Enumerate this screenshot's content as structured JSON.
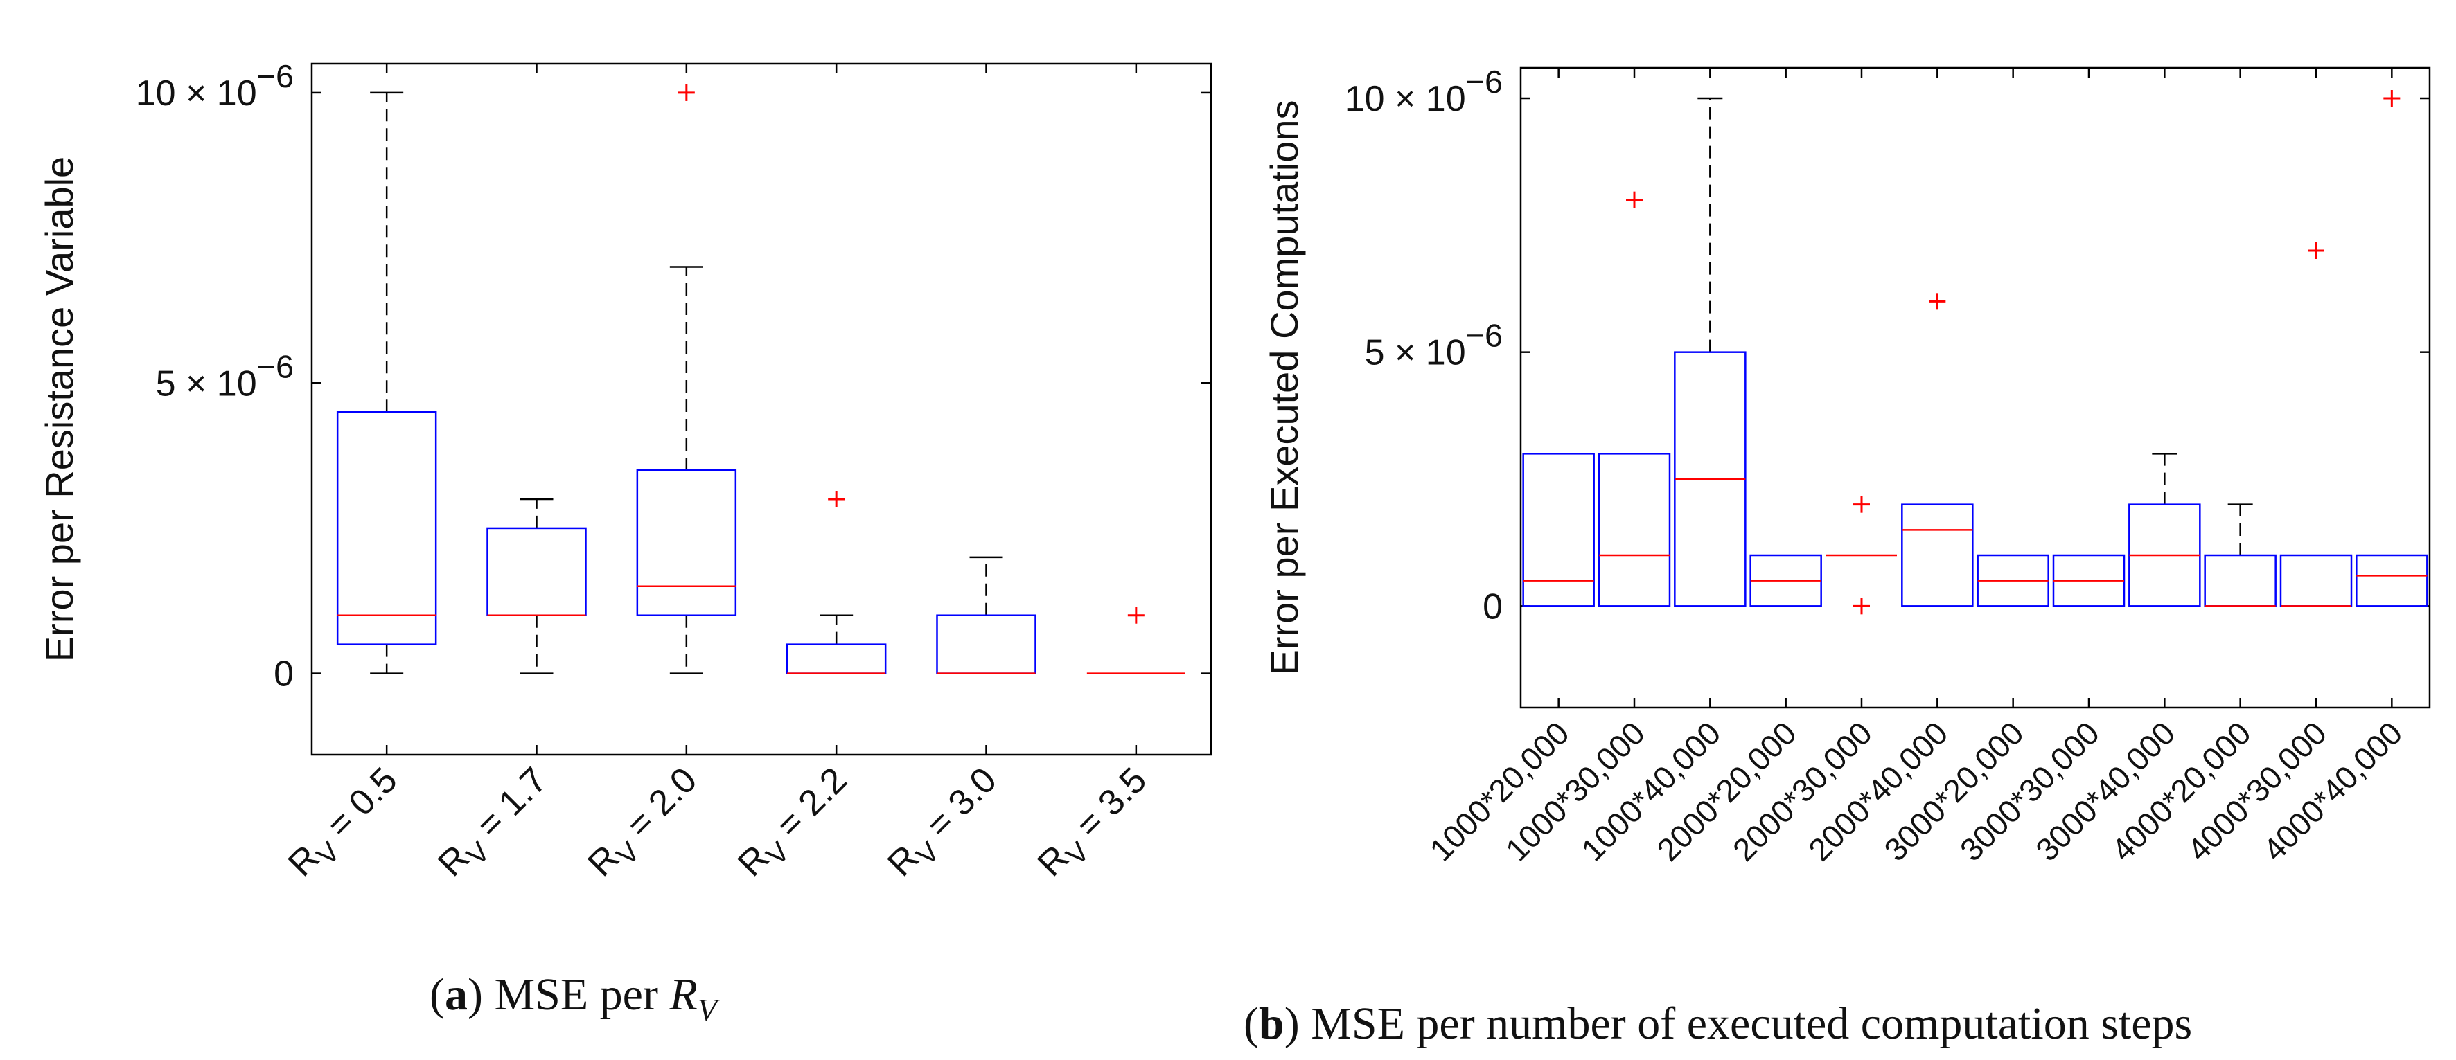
{
  "chart_data": [
    {
      "type": "box",
      "panel": "a",
      "caption_letter": "a",
      "caption_text": "MSE per",
      "caption_symbol": "R",
      "caption_sub": "V",
      "ylabel": "Error per Resistance Variable",
      "ylim": [
        -1.4e-06,
        1.05e-05
      ],
      "yticks": [
        {
          "value": 0,
          "label": "0"
        },
        {
          "value": 5e-06,
          "label": "5 × 10",
          "exp": "−6"
        },
        {
          "value": 1e-05,
          "label": "10 × 10",
          "exp": "−6"
        }
      ],
      "categories": [
        {
          "pre": "R",
          "sub": "V",
          "post": " = 0.5"
        },
        {
          "pre": "R",
          "sub": "V",
          "post": " = 1.7"
        },
        {
          "pre": "R",
          "sub": "V",
          "post": " = 2.0"
        },
        {
          "pre": "R",
          "sub": "V",
          "post": " = 2.2"
        },
        {
          "pre": "R",
          "sub": "V",
          "post": " = 3.0"
        },
        {
          "pre": "R",
          "sub": "V",
          "post": " = 3.5"
        }
      ],
      "boxes": [
        {
          "q1": 5e-07,
          "median": 1e-06,
          "q3": 4.5e-06,
          "whisker_low": 0,
          "whisker_high": 1e-05,
          "outliers": []
        },
        {
          "q1": 1e-06,
          "median": 1e-06,
          "q3": 2.5e-06,
          "whisker_low": 0,
          "whisker_high": 3e-06,
          "outliers": []
        },
        {
          "q1": 1e-06,
          "median": 1.5e-06,
          "q3": 3.5e-06,
          "whisker_low": 0,
          "whisker_high": 7e-06,
          "outliers": [
            1e-05
          ]
        },
        {
          "q1": 0,
          "median": 0,
          "q3": 5e-07,
          "whisker_low": 0,
          "whisker_high": 1e-06,
          "outliers": [
            3e-06
          ]
        },
        {
          "q1": 0,
          "median": 0,
          "q3": 1e-06,
          "whisker_low": 0,
          "whisker_high": 2e-06,
          "outliers": []
        },
        {
          "q1": 0,
          "median": 0,
          "q3": 0,
          "whisker_low": 0,
          "whisker_high": 0,
          "outliers": [
            1e-06
          ]
        }
      ]
    },
    {
      "type": "box",
      "panel": "b",
      "caption_letter": "b",
      "caption_text": "MSE per number of executed computation steps",
      "ylabel": "Error per Executed Computations",
      "ylim": [
        -2e-06,
        1.06e-05
      ],
      "yticks": [
        {
          "value": 0,
          "label": "0"
        },
        {
          "value": 5e-06,
          "label": "5 × 10",
          "exp": "−6"
        },
        {
          "value": 1e-05,
          "label": "10 × 10",
          "exp": "−6"
        }
      ],
      "categories": [
        "1000*20,000",
        "1000*30,000",
        "1000*40,000",
        "2000*20,000",
        "2000*30,000",
        "2000*40,000",
        "3000*20,000",
        "3000*30,000",
        "3000*40,000",
        "4000*20,000",
        "4000*30,000",
        "4000*40,000"
      ],
      "boxes": [
        {
          "q1": 0,
          "median": 5e-07,
          "q3": 3e-06,
          "whisker_low": 0,
          "whisker_high": 3e-06,
          "outliers": []
        },
        {
          "q1": 0,
          "median": 1e-06,
          "q3": 3e-06,
          "whisker_low": 0,
          "whisker_high": 3e-06,
          "outliers": [
            8e-06
          ]
        },
        {
          "q1": 0,
          "median": 2.5e-06,
          "q3": 5e-06,
          "whisker_low": 0,
          "whisker_high": 1e-05,
          "outliers": []
        },
        {
          "q1": 0,
          "median": 5e-07,
          "q3": 1e-06,
          "whisker_low": 0,
          "whisker_high": 1e-06,
          "outliers": []
        },
        {
          "q1": 1e-06,
          "median": 1e-06,
          "q3": 1e-06,
          "whisker_low": 1e-06,
          "whisker_high": 1e-06,
          "outliers": [
            0,
            2e-06
          ]
        },
        {
          "q1": 0,
          "median": 1.5e-06,
          "q3": 2e-06,
          "whisker_low": 0,
          "whisker_high": 2e-06,
          "outliers": [
            6e-06
          ]
        },
        {
          "q1": 0,
          "median": 5e-07,
          "q3": 1e-06,
          "whisker_low": 0,
          "whisker_high": 1e-06,
          "outliers": []
        },
        {
          "q1": 0,
          "median": 5e-07,
          "q3": 1e-06,
          "whisker_low": 0,
          "whisker_high": 1e-06,
          "outliers": []
        },
        {
          "q1": 0,
          "median": 1e-06,
          "q3": 2e-06,
          "whisker_low": 0,
          "whisker_high": 3e-06,
          "outliers": []
        },
        {
          "q1": 0,
          "median": 0,
          "q3": 1e-06,
          "whisker_low": 0,
          "whisker_high": 2e-06,
          "outliers": []
        },
        {
          "q1": 0,
          "median": 0,
          "q3": 1e-06,
          "whisker_low": 0,
          "whisker_high": 1e-06,
          "outliers": [
            7e-06
          ]
        },
        {
          "q1": 0,
          "median": 6e-07,
          "q3": 1e-06,
          "whisker_low": 0,
          "whisker_high": 1e-06,
          "outliers": [
            1e-05
          ]
        }
      ]
    }
  ],
  "colors": {
    "box": "#0000ff",
    "median": "#ff0000",
    "outlier": "#ff0000",
    "whisker": "#000000",
    "axes": "#000000"
  }
}
